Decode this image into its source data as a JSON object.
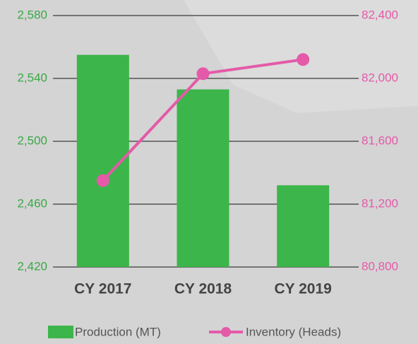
{
  "chart_data": {
    "type": "bar-line",
    "categories": [
      "CY 2017",
      "CY 2018",
      "CY 2019"
    ],
    "series": [
      {
        "name": "Production (MT)",
        "type": "bar",
        "color": "#3cb54a",
        "values": [
          2555,
          2533,
          2472
        ]
      },
      {
        "name": "Inventory (Heads)",
        "type": "line",
        "axis": "y2",
        "color": "#e45aa8",
        "values": [
          81350,
          82030,
          82120
        ]
      }
    ],
    "ylim": [
      2420,
      2580
    ],
    "yticks": [
      {
        "value": 2420,
        "label": "2,420"
      },
      {
        "value": 2460,
        "label": "2,460"
      },
      {
        "value": 2500,
        "label": "2,500"
      },
      {
        "value": 2540,
        "label": "2,540"
      },
      {
        "value": 2580,
        "label": "2,580"
      }
    ],
    "y2lim": [
      80800,
      82400
    ],
    "y2ticks": [
      {
        "value": 80800,
        "label": "80,800"
      },
      {
        "value": 81200,
        "label": "81,200"
      },
      {
        "value": 81600,
        "label": "81,600"
      },
      {
        "value": 82000,
        "label": "82,000"
      },
      {
        "value": 82400,
        "label": "82,400"
      }
    ],
    "grid": true,
    "legend": "bottom"
  }
}
